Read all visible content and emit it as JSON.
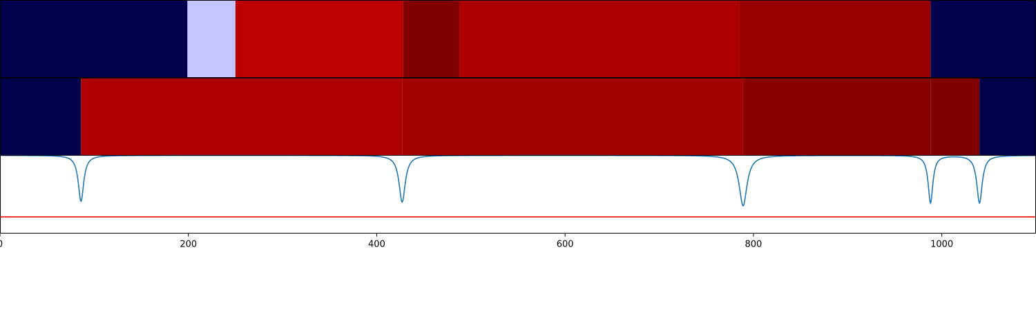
{
  "chart_data": [
    {
      "type": "heatmap",
      "title": "",
      "xlim": [
        0,
        1100
      ],
      "segments": [
        {
          "x0": 0,
          "x1": 199,
          "color": "#00004c"
        },
        {
          "x0": 199,
          "x1": 250,
          "color": "#c4c4ff"
        },
        {
          "x0": 250,
          "x1": 428,
          "color": "#bd0000"
        },
        {
          "x0": 428,
          "x1": 488,
          "color": "#800000"
        },
        {
          "x0": 488,
          "x1": 785,
          "color": "#ad0000"
        },
        {
          "x0": 785,
          "x1": 988,
          "color": "#980000"
        },
        {
          "x0": 988,
          "x1": 1100,
          "color": "#00004c"
        }
      ]
    },
    {
      "type": "heatmap",
      "title": "",
      "xlim": [
        0,
        1100
      ],
      "segments": [
        {
          "x0": 0,
          "x1": 86,
          "color": "#00004c"
        },
        {
          "x0": 86,
          "x1": 427,
          "color": "#ae0000"
        },
        {
          "x0": 427,
          "x1": 789,
          "color": "#a20000"
        },
        {
          "x0": 789,
          "x1": 988,
          "color": "#8a0000"
        },
        {
          "x0": 988,
          "x1": 1040,
          "color": "#800000"
        },
        {
          "x0": 1040,
          "x1": 1100,
          "color": "#00004c"
        }
      ]
    },
    {
      "type": "line",
      "title": "",
      "xlabel": "",
      "ylabel": "",
      "xlim": [
        0,
        1100
      ],
      "ylim": [
        0,
        1
      ],
      "xticks": [
        0,
        200,
        400,
        600,
        800,
        1000
      ],
      "xtick_labels": [
        "0",
        "200",
        "400",
        "600",
        "800",
        "1000"
      ],
      "grid": false,
      "series": [
        {
          "color": "#1f77b4",
          "baseline": 1.0,
          "dips": [
            {
              "x": 86,
              "y": 0.41,
              "width": 3.5
            },
            {
              "x": 427,
              "y": 0.4,
              "width": 4
            },
            {
              "x": 789,
              "y": 0.35,
              "width": 5
            },
            {
              "x": 988,
              "y": 0.39,
              "width": 3
            },
            {
              "x": 1040,
              "y": 0.39,
              "width": 3.5
            }
          ]
        }
      ],
      "hlines": [
        {
          "y": 0.21,
          "color": "#ff0000"
        }
      ]
    }
  ]
}
